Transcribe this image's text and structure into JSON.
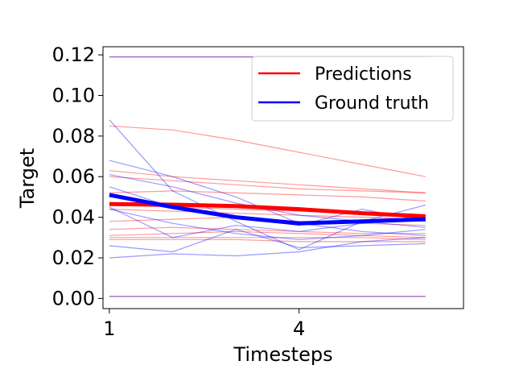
{
  "chart_data": {
    "type": "line",
    "title": "",
    "xlabel": "Timesteps",
    "ylabel": "Target",
    "xlim": [
      0.9,
      6.6
    ],
    "ylim": [
      -0.005,
      0.124
    ],
    "x_ticks": [
      1,
      4
    ],
    "y_ticks": [
      0.0,
      0.02,
      0.04,
      0.06,
      0.08,
      0.1,
      0.12
    ],
    "y_tick_labels": [
      "0.00",
      "0.02",
      "0.04",
      "0.06",
      "0.08",
      "0.10",
      "0.12"
    ],
    "x_tick_labels": [
      "1",
      "4"
    ],
    "legend": {
      "position": "upper-right",
      "entries": [
        {
          "name": "Predictions",
          "color": "#ff0000"
        },
        {
          "name": "Ground truth",
          "color": "#0000ff"
        }
      ]
    },
    "x": [
      1,
      2,
      3,
      4,
      5,
      6
    ],
    "prediction_samples": [
      [
        0.085,
        0.083,
        0.078,
        0.072,
        0.066,
        0.06
      ],
      [
        0.063,
        0.06,
        0.058,
        0.056,
        0.054,
        0.052
      ],
      [
        0.06,
        0.058,
        0.056,
        0.054,
        0.053,
        0.052
      ],
      [
        0.052,
        0.053,
        0.052,
        0.051,
        0.05,
        0.048
      ],
      [
        0.046,
        0.045,
        0.044,
        0.043,
        0.042,
        0.041
      ],
      [
        0.044,
        0.043,
        0.042,
        0.041,
        0.04,
        0.039
      ],
      [
        0.038,
        0.039,
        0.04,
        0.038,
        0.037,
        0.036
      ],
      [
        0.034,
        0.035,
        0.034,
        0.033,
        0.032,
        0.032
      ],
      [
        0.031,
        0.032,
        0.033,
        0.032,
        0.031,
        0.03
      ],
      [
        0.03,
        0.03,
        0.03,
        0.03,
        0.03,
        0.029
      ],
      [
        0.029,
        0.029,
        0.029,
        0.028,
        0.028,
        0.028
      ],
      [
        0.119,
        0.119,
        0.119,
        0.119,
        0.119,
        0.119
      ],
      [
        0.001,
        0.001,
        0.001,
        0.001,
        0.001,
        0.001
      ]
    ],
    "ground_truth_samples": [
      [
        0.088,
        0.053,
        0.038,
        0.024,
        0.038,
        0.046
      ],
      [
        0.068,
        0.06,
        0.05,
        0.037,
        0.033,
        0.031
      ],
      [
        0.061,
        0.055,
        0.047,
        0.041,
        0.038,
        0.035
      ],
      [
        0.045,
        0.03,
        0.036,
        0.033,
        0.037,
        0.04
      ],
      [
        0.044,
        0.037,
        0.032,
        0.029,
        0.031,
        0.034
      ],
      [
        0.026,
        0.023,
        0.034,
        0.025,
        0.026,
        0.027
      ],
      [
        0.02,
        0.022,
        0.021,
        0.023,
        0.028,
        0.03
      ],
      [
        0.055,
        0.045,
        0.04,
        0.036,
        0.044,
        0.038
      ],
      [
        0.119,
        0.119,
        0.119,
        0.119,
        0.119,
        0.119
      ],
      [
        0.001,
        0.001,
        0.001,
        0.001,
        0.001,
        0.001
      ]
    ],
    "series": [
      {
        "name": "Predictions",
        "color": "#ff0000",
        "values": [
          0.0465,
          0.0462,
          0.0455,
          0.044,
          0.042,
          0.0405
        ]
      },
      {
        "name": "Ground truth",
        "color": "#0000ff",
        "values": [
          0.051,
          0.045,
          0.04,
          0.037,
          0.038,
          0.039
        ]
      }
    ]
  }
}
